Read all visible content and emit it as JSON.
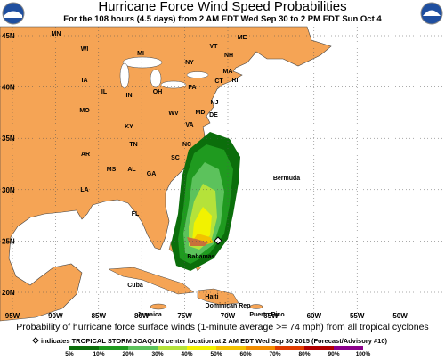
{
  "header": {
    "title": "Hurricane Force Wind Speed Probabilities",
    "subtitle": "For the 108 hours (4.5 days) from 2 AM EDT Wed Sep 30 to 2 PM EDT Sun Oct 4"
  },
  "map": {
    "lat_labels": [
      "45N",
      "40N",
      "35N",
      "30N",
      "25N",
      "20N"
    ],
    "lon_labels": [
      "95W",
      "90W",
      "85W",
      "80W",
      "75W",
      "70W",
      "65W",
      "60W",
      "55W",
      "50W"
    ],
    "places": [
      "MN",
      "WI",
      "MI",
      "NY",
      "VT",
      "NH",
      "ME",
      "MA",
      "CT",
      "RI",
      "IA",
      "IL",
      "IN",
      "OH",
      "PA",
      "NJ",
      "DE",
      "MD",
      "MO",
      "KY",
      "WV",
      "VA",
      "AR",
      "TN",
      "NC",
      "MS",
      "AL",
      "GA",
      "SC",
      "LA",
      "FL",
      "Bermuda",
      "Bahamas",
      "Cuba",
      "Haiti",
      "Dominican Rep",
      "Jamaica",
      "Puerto Rico"
    ]
  },
  "footer": {
    "caption": "Probability of hurricane force surface winds (1-minute average >= 74 mph) from all tropical cyclones",
    "marker_note": "indicates TROPICAL STORM JOAQUIN center location at 2 AM EDT Wed Sep 30 2015 (Forecast/Advisory #10)"
  },
  "legend": {
    "labels": [
      "5%",
      "10%",
      "20%",
      "30%",
      "40%",
      "50%",
      "60%",
      "70%",
      "80%",
      "90%",
      "100%"
    ],
    "colors": [
      "#0b6e0b",
      "#1f9a1f",
      "#5cc25c",
      "#b5e23a",
      "#f2f200",
      "#f2c200",
      "#f28c00",
      "#e03c00",
      "#b00000",
      "#8a008a"
    ]
  }
}
